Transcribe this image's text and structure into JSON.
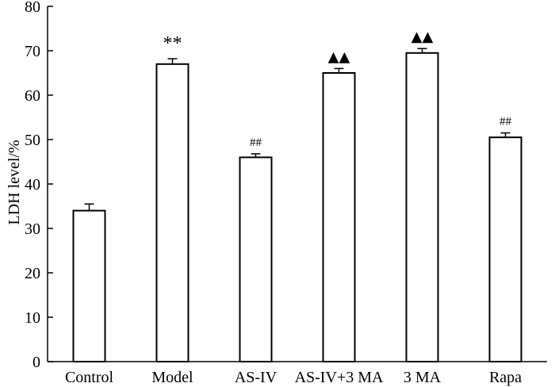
{
  "chart_data": {
    "type": "bar",
    "title": "",
    "xlabel": "",
    "ylabel": "LDH level/%",
    "ylim": [
      0,
      80
    ],
    "yticks": [
      0,
      10,
      20,
      30,
      40,
      50,
      60,
      70,
      80
    ],
    "grid": false,
    "categories": [
      "Control",
      "Model",
      "AS-IV",
      "AS-IV+3 MA",
      "3 MA",
      "Rapa"
    ],
    "values": [
      34,
      67,
      46,
      65,
      69.5,
      50.5
    ],
    "errors": [
      1.5,
      1.2,
      0.8,
      1.0,
      1.0,
      1.0
    ],
    "annotations": [
      "",
      "**",
      "##",
      "▲▲",
      "▲▲",
      "##"
    ]
  }
}
